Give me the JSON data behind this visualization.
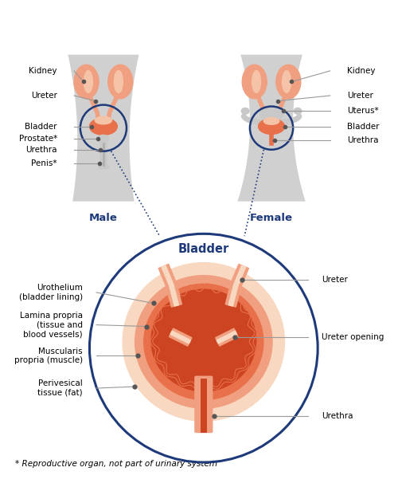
{
  "bg_color": "#ffffff",
  "body_color": "#d0d0d0",
  "organ_salmon": "#f0a080",
  "organ_orange": "#e8704a",
  "organ_dark": "#cc4422",
  "organ_light": "#f5c4a8",
  "organ_perivesical": "#f8d8c0",
  "gray_organ": "#b0b0b0",
  "gray_light": "#c8c8c8",
  "urethra_color": "#cc4422",
  "blue_circle": "#1e3a7a",
  "dot_color": "#555555",
  "line_color": "#999999",
  "text_color": "#000000",
  "blue_text": "#1e3a7a",
  "label_fontsize": 7.5,
  "bladder_title": "Bladder",
  "male_label": "Male",
  "female_label": "Female",
  "footnote": "* Reproductive organ, not part of urinary system"
}
